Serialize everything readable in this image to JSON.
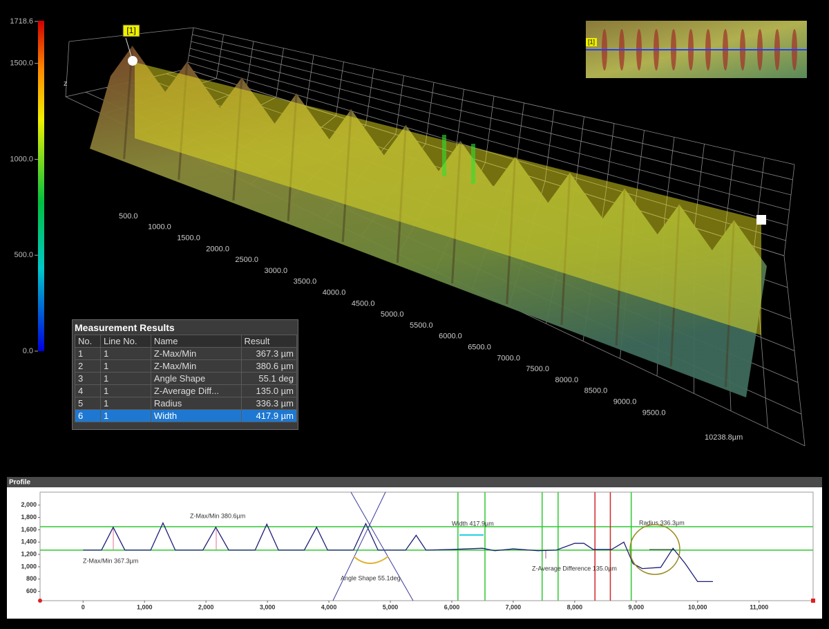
{
  "colorbar": {
    "range": [
      0,
      1718.6
    ],
    "ticks": [
      {
        "value": 1718.6,
        "label": "1718.6"
      },
      {
        "value": 1500,
        "label": "1500.0"
      },
      {
        "value": 1000,
        "label": "1000.0"
      },
      {
        "value": 500,
        "label": "500.0"
      },
      {
        "value": 0,
        "label": "0.0"
      }
    ]
  },
  "view3d": {
    "z_label": "z",
    "marker_label": "[1]",
    "x_labels": [
      "500.0",
      "1000.0",
      "1500.0",
      "2000.0",
      "2500.0",
      "3000.0",
      "3500.0",
      "4000.0",
      "4500.0",
      "5000.0",
      "5500.0",
      "6000.0",
      "6500.0",
      "7000.0",
      "7500.0",
      "8000.0",
      "8500.0",
      "9000.0",
      "9500.0"
    ],
    "x_end_label": "10238.8µm"
  },
  "inset": {
    "marker_label": "[1]"
  },
  "measurement_results": {
    "title": "Measurement Results",
    "columns": [
      "No.",
      "Line No.",
      "Name",
      "Result"
    ],
    "rows": [
      [
        "1",
        "1",
        "Z-Max/Min",
        "367.3 µm"
      ],
      [
        "2",
        "1",
        "Z-Max/Min",
        "380.6 µm"
      ],
      [
        "3",
        "1",
        "Angle Shape",
        "55.1 deg"
      ],
      [
        "4",
        "1",
        "Z-Average Diff...",
        "135.0 µm"
      ],
      [
        "5",
        "1",
        "Radius",
        "336.3 µm"
      ],
      [
        "6",
        "1",
        "Width",
        "417.9 µm"
      ]
    ],
    "selected_row": 5
  },
  "chart_data": {
    "type": "line",
    "title": "Profile",
    "x": [
      0,
      300,
      490,
      680,
      1100,
      1300,
      1500,
      1950,
      2160,
      2370,
      2800,
      2990,
      3180,
      3600,
      3800,
      3980,
      4400,
      4600,
      4800,
      5250,
      5420,
      5580,
      6000,
      6500,
      6700,
      7000,
      7400,
      7700,
      8000,
      8150,
      8300,
      8600,
      8800,
      8950,
      9100,
      9400,
      9600,
      9800,
      10000,
      10250
    ],
    "values": [
      1270,
      1270,
      1640,
      1270,
      1270,
      1710,
      1270,
      1270,
      1640,
      1270,
      1270,
      1690,
      1270,
      1270,
      1640,
      1270,
      1270,
      1700,
      1270,
      1270,
      1510,
      1270,
      1280,
      1300,
      1260,
      1290,
      1260,
      1270,
      1380,
      1380,
      1280,
      1280,
      1400,
      1050,
      970,
      990,
      1300,
      1050,
      760,
      760
    ],
    "color": "#1c1c78",
    "xlim": [
      -700,
      11880
    ],
    "ylim": [
      450,
      2210
    ],
    "xticks": [
      0,
      {
        "value": 1000,
        "label": "1,000"
      },
      {
        "value": 2000,
        "label": "2,000"
      },
      {
        "value": 3000,
        "label": "3,000"
      },
      {
        "value": 4000,
        "label": "4,000"
      },
      {
        "value": 5000,
        "label": "5,000"
      },
      {
        "value": 6000,
        "label": "6,000"
      },
      {
        "value": 7000,
        "label": "7,000"
      },
      {
        "value": 8000,
        "label": "8,000"
      },
      {
        "value": 9000,
        "label": "9,000"
      },
      {
        "value": 10000,
        "label": "10,000"
      },
      {
        "value": 11000,
        "label": "11,000"
      }
    ],
    "yticks": [
      600,
      800,
      {
        "value": 1000,
        "label": "1,000"
      },
      {
        "value": 1200,
        "label": "1,200"
      },
      {
        "value": 1400,
        "label": "1,400"
      },
      {
        "value": 1600,
        "label": "1,600"
      },
      {
        "value": 1800,
        "label": "1,800"
      },
      {
        "value": 2000,
        "label": "2,000"
      }
    ],
    "hlines": [
      1650,
      1270
    ],
    "vlines": [
      6100,
      6540,
      7470,
      7730,
      8920
    ],
    "red_vlines": [
      8330,
      8580
    ],
    "guide_color": "#2ec82e",
    "red_guide_color": "#d02828",
    "annotations": [
      "Z-Max/Min 380.6µm",
      "Z-Max/Min 367.3µm",
      "Angle Shape 55.1deg",
      "Width 417.9µm",
      "Z-Average Difference 135.0µm",
      "Radius 336.3µm"
    ]
  }
}
